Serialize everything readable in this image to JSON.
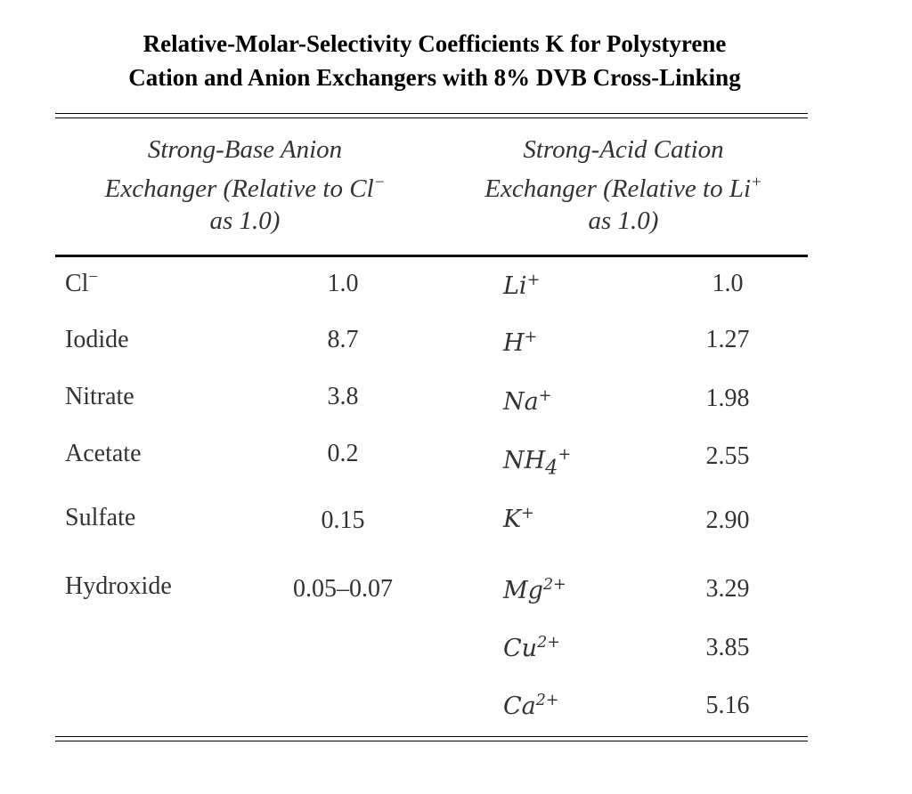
{
  "title": {
    "line1": "Relative-Molar-Selectivity Coefficients K for Polystyrene",
    "line2": "Cation and Anion Exchangers with 8% DVB Cross-Linking"
  },
  "columns": {
    "anion": {
      "line1": "Strong-Base Anion",
      "line2_base": "Exchanger (Relative to Cl",
      "line2_sup": "−",
      "line3": "as 1.0)"
    },
    "cation": {
      "line1": "Strong-Acid Cation",
      "line2_base": "Exchanger (Relative to Li",
      "line2_sup": "+",
      "line3": "as 1.0)"
    }
  },
  "anions": [
    {
      "base": "Cl",
      "sup": "−",
      "value": "1.0"
    },
    {
      "base": "Iodide",
      "sup": "",
      "value": "8.7"
    },
    {
      "base": "Nitrate",
      "sup": "",
      "value": "3.8"
    },
    {
      "base": "Acetate",
      "sup": "",
      "value": "0.2"
    },
    {
      "base": "Sulfate",
      "sup": "",
      "value": "0.15"
    },
    {
      "base": "Hydroxide",
      "sup": "",
      "value": "0.05–0.07"
    }
  ],
  "cations": [
    {
      "base": "Li",
      "sub": "",
      "sup": "+",
      "value": "1.0"
    },
    {
      "base": "H",
      "sub": "",
      "sup": "+",
      "value": "1.27"
    },
    {
      "base": "Na",
      "sub": "",
      "sup": "+",
      "value": "1.98"
    },
    {
      "base": "NH",
      "sub": "4",
      "sup": "+",
      "value": "2.55"
    },
    {
      "base": "K",
      "sub": "",
      "sup": "+",
      "value": "2.90"
    },
    {
      "base": "Mg",
      "sub": "",
      "sup": "2+",
      "value": "3.29"
    },
    {
      "base": "Cu",
      "sub": "",
      "sup": "2+",
      "value": "3.85"
    },
    {
      "base": "Ca",
      "sub": "",
      "sup": "2+",
      "value": "5.16"
    }
  ]
}
